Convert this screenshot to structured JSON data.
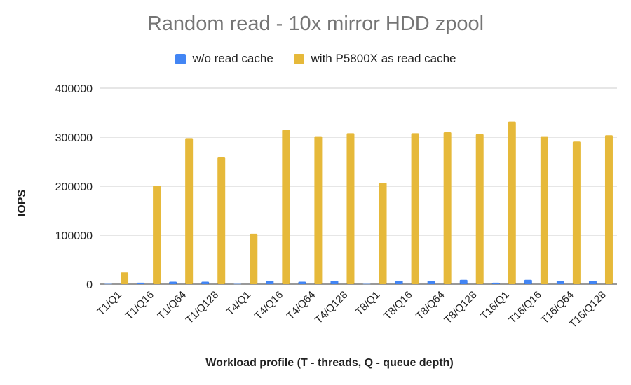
{
  "chart_data": {
    "type": "bar",
    "title": "Random read - 10x mirror HDD zpool",
    "xlabel": "Workload profile (T - threads, Q - queue depth)",
    "ylabel": "IOPS",
    "ylim": [
      0,
      400000
    ],
    "yticks": [
      "0",
      "100000",
      "200000",
      "300000",
      "400000"
    ],
    "grid": true,
    "legend_position": "top",
    "categories": [
      "T1/Q1",
      "T1/Q16",
      "T1/Q64",
      "T1/Q128",
      "T4/Q1",
      "T4/Q16",
      "T4/Q64",
      "T4/Q128",
      "T8/Q1",
      "T8/Q16",
      "T8/Q64",
      "T8/Q128",
      "T16/Q1",
      "T16/Q16",
      "T16/Q64",
      "T16/Q128"
    ],
    "series": [
      {
        "name": "w/o read cache",
        "color": "#4285f4",
        "values": [
          500,
          3000,
          5000,
          5000,
          500,
          7000,
          5000,
          7000,
          500,
          7000,
          7000,
          9000,
          3000,
          9000,
          7000,
          7000
        ]
      },
      {
        "name": "with P5800X as read cache",
        "color": "#e6b93a",
        "values": [
          24000,
          201000,
          298000,
          260000,
          103000,
          315000,
          302000,
          308000,
          207000,
          308000,
          310000,
          306000,
          332000,
          302000,
          291000,
          304000
        ]
      }
    ]
  }
}
